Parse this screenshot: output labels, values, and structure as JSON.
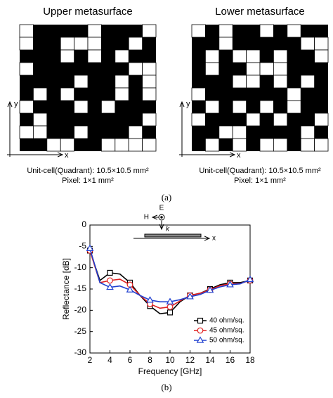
{
  "panel_a": {
    "label": "(a)",
    "metasurfaces": [
      {
        "title": "Upper metasurface",
        "caption": "Unit-cell(Quadrant): 10.5×10.5 mm²",
        "pixel": "Pixel: 1×1 mm²",
        "x_label": "x",
        "y_label": "y",
        "cells": [
          "1000010001",
          "1001110010",
          "0001010100",
          "1000000011",
          "0000100101",
          "0101000101",
          "1000101000",
          "0100000001",
          "1100100010",
          "0011001111"
        ]
      },
      {
        "title": "Lower metasurface",
        "caption": "Unit-cell(Quadrant): 10.5×10.5 mm²",
        "pixel": "Pixel: 1×1 mm²",
        "x_label": "x",
        "y_label": "y",
        "cells": [
          "1010010100",
          "0010000011",
          "0101101001",
          "0100111000",
          "0001101010",
          "1000000100",
          "0101010100",
          "1000101001",
          "0011000010",
          "0101011011"
        ]
      }
    ]
  },
  "panel_b": {
    "label": "(b)",
    "inset": {
      "e": "E",
      "h": "H",
      "k": "k",
      "x": "x"
    }
  },
  "chart_data": {
    "type": "line",
    "x_label": "Frequency [GHz]",
    "y_label": "Reflectance [dB]",
    "x": [
      2,
      3,
      4,
      5,
      6,
      7,
      8,
      9,
      10,
      11,
      12,
      13,
      14,
      15,
      16,
      17,
      18
    ],
    "xlim": [
      2,
      18
    ],
    "xticks": [
      2,
      4,
      6,
      8,
      10,
      12,
      14,
      16,
      18
    ],
    "ylim": [
      -30,
      0
    ],
    "yticks": [
      0,
      -5,
      -10,
      -15,
      -20,
      -25,
      -30
    ],
    "legend": "lower right",
    "series": [
      {
        "name": "40 ohm/sq.",
        "color": "#000000",
        "marker": "square",
        "values": [
          -6,
          -13,
          -11.2,
          -11.5,
          -13.5,
          -16.5,
          -19,
          -20.8,
          -20.5,
          -18,
          -16.5,
          -16,
          -15,
          -14,
          -13.5,
          -13.5,
          -13
        ]
      },
      {
        "name": "45 ohm/sq.",
        "color": "#e02020",
        "marker": "circle",
        "values": [
          -6,
          -13.5,
          -13,
          -12.7,
          -14,
          -16.5,
          -18.5,
          -19.5,
          -19.2,
          -17.8,
          -16.5,
          -16,
          -15.2,
          -14.2,
          -13.8,
          -13.7,
          -13
        ]
      },
      {
        "name": "50 ohm/sq.",
        "color": "#2040d0",
        "marker": "triangle",
        "values": [
          -5.5,
          -13.5,
          -14.6,
          -14.3,
          -15.2,
          -16.5,
          -17.6,
          -18,
          -18,
          -17.5,
          -16.8,
          -16.3,
          -15.3,
          -14.5,
          -14,
          -13.8,
          -12.8
        ]
      }
    ]
  }
}
